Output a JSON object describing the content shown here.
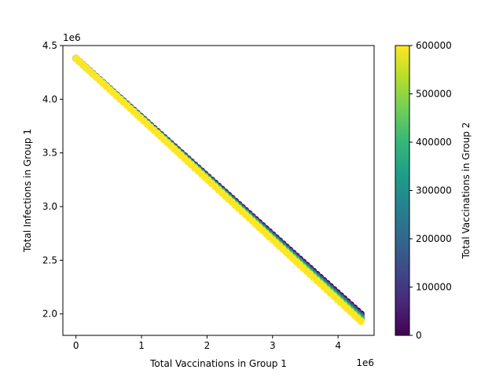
{
  "chart_data": {
    "type": "scatter",
    "title": "",
    "xlabel": "Total Vaccinations in Group 1",
    "ylabel": "Total Infections in Group 1",
    "x_multiplier_label": "1e6",
    "y_multiplier_label": "1e6",
    "xlim": [
      -0.2,
      4.55
    ],
    "ylim": [
      1.8,
      4.5
    ],
    "x_ticks": [
      0,
      1,
      2,
      3,
      4
    ],
    "x_tick_labels": [
      "0",
      "1",
      "2",
      "3",
      "4"
    ],
    "y_ticks": [
      2.0,
      2.5,
      3.0,
      3.5,
      4.0,
      4.5
    ],
    "y_tick_labels": [
      "2.0",
      "2.5",
      "3.0",
      "3.5",
      "4.0",
      "4.5"
    ],
    "grid": false,
    "colorbar": {
      "label": "Total Vaccinations in Group 2",
      "range": [
        0,
        600000
      ],
      "ticks": [
        0,
        100000,
        200000,
        300000,
        400000,
        500000,
        600000
      ],
      "tick_labels": [
        "0",
        "100000",
        "200000",
        "300000",
        "400000",
        "500000",
        "600000"
      ],
      "colormap": "viridis",
      "colors": [
        "#440154",
        "#482878",
        "#3e4989",
        "#31688e",
        "#26828e",
        "#1f9e89",
        "#35b779",
        "#6ece58",
        "#b5de2b",
        "#fde725"
      ]
    },
    "series_trend": {
      "x_start": 0,
      "x_end": 4.35,
      "y_at_x_start_g2_max": 4.38,
      "y_at_x_end_g2_max": 1.93,
      "y_at_x_end_g2_min": 2.0,
      "g2_values": [
        0,
        100000,
        200000,
        300000,
        400000,
        500000,
        600000
      ]
    }
  }
}
